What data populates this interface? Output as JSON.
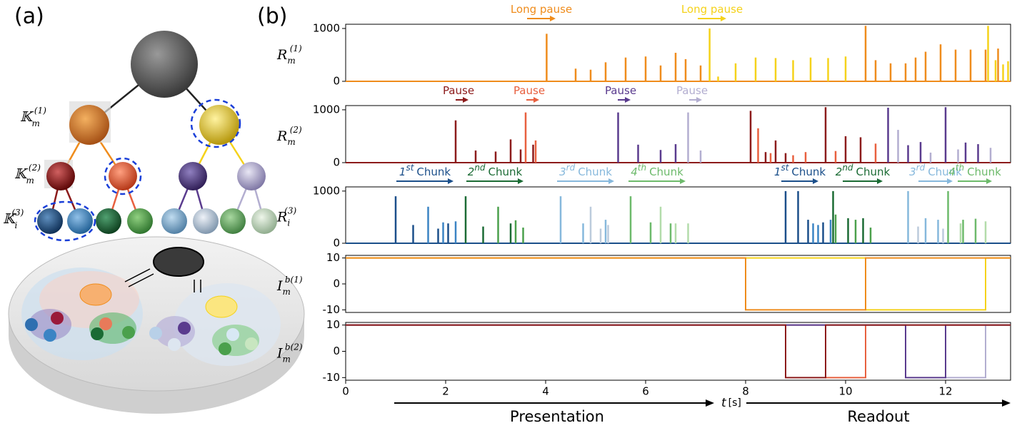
{
  "panel_labels": [
    "(a)",
    "(b)"
  ],
  "diagram": {
    "levels": [
      {
        "base": "𝕂",
        "sub": "m",
        "sup": "(1)"
      },
      {
        "base": "𝕂",
        "sub": "m",
        "sup": "(2)"
      },
      {
        "base": "𝕂",
        "sub": "i",
        "sup": "(3)"
      }
    ]
  },
  "timeline": {
    "t": "t",
    "unit": "[s]",
    "phases": [
      "Presentation",
      "Readout"
    ]
  },
  "chart_data": [
    {
      "type": "spike",
      "ylabel": {
        "base": "R",
        "sub": "m",
        "sup": "(1)"
      },
      "ylim": [
        0,
        1080
      ],
      "yticks": [
        0,
        1000
      ],
      "annotations": [
        {
          "text": "Long pause",
          "color": "#ef8c1c"
        },
        {
          "text": "Long pause",
          "color": "#f5d21a"
        }
      ],
      "series": [
        {
          "color": "#ef8c1c",
          "x": [
            4.02,
            4.6,
            4.9,
            5.2,
            5.6,
            6.0,
            6.3,
            6.6,
            6.8,
            7.1,
            10.4,
            10.6,
            10.9,
            11.2,
            11.4,
            11.6,
            11.9,
            12.2,
            12.5,
            12.8,
            13.05
          ],
          "values": [
            900,
            240,
            220,
            360,
            450,
            470,
            300,
            540,
            420,
            300,
            1050,
            400,
            340,
            340,
            450,
            560,
            700,
            600,
            600,
            600,
            620
          ]
        },
        {
          "color": "#f5d21a",
          "x": [
            7.28,
            7.45,
            7.8,
            8.2,
            8.6,
            8.95,
            9.3,
            9.65,
            10.0,
            12.85,
            13.0,
            13.15,
            13.25
          ],
          "values": [
            1000,
            90,
            340,
            450,
            440,
            400,
            450,
            440,
            470,
            1050,
            400,
            320,
            380
          ]
        }
      ]
    },
    {
      "type": "spike",
      "ylabel": {
        "base": "R",
        "sub": "m",
        "sup": "(2)"
      },
      "ylim": [
        0,
        1080
      ],
      "yticks": [
        0,
        1000
      ],
      "annotations": [
        {
          "text": "Pause",
          "color": "#8c1b1b"
        },
        {
          "text": "Pause",
          "color": "#e8603f"
        },
        {
          "text": "Pause",
          "color": "#5a3b8e"
        },
        {
          "text": "Pause",
          "color": "#b3aed0"
        }
      ],
      "series": [
        {
          "color": "#8c1b1b",
          "x": [
            2.2,
            2.6,
            3.0,
            3.3,
            3.5,
            3.75,
            8.1,
            8.4,
            8.6,
            8.8,
            9.6,
            10.0,
            10.3
          ],
          "values": [
            800,
            230,
            210,
            440,
            250,
            340,
            980,
            200,
            420,
            180,
            1050,
            500,
            480
          ]
        },
        {
          "color": "#e8603f",
          "x": [
            3.6,
            3.8,
            8.25,
            8.5,
            8.95,
            9.2,
            9.8,
            10.6
          ],
          "values": [
            950,
            420,
            650,
            180,
            140,
            200,
            220,
            360
          ]
        },
        {
          "color": "#5a3b8e",
          "x": [
            5.45,
            5.85,
            6.3,
            6.6,
            10.85,
            11.25,
            11.5,
            12.0,
            12.4,
            12.65
          ],
          "values": [
            950,
            340,
            240,
            350,
            1040,
            330,
            390,
            1050,
            380,
            350
          ]
        },
        {
          "color": "#b3aed0",
          "x": [
            6.85,
            7.1,
            11.05,
            11.7,
            12.25,
            12.9
          ],
          "values": [
            950,
            230,
            620,
            190,
            250,
            280
          ]
        }
      ]
    },
    {
      "type": "spike",
      "ylabel": {
        "base": "R",
        "sub": "i",
        "sup": "(3)"
      },
      "ylim": [
        0,
        1080
      ],
      "yticks": [
        0,
        1000
      ],
      "annotations": [
        {
          "num": "1",
          "ord": "st",
          "word": "Chunk",
          "color": "#1b4f8a"
        },
        {
          "num": "2",
          "ord": "nd",
          "word": "Chunk",
          "color": "#1b6b34"
        },
        {
          "num": "3",
          "ord": "rd",
          "word": "Chunk",
          "color": "#86b8dc"
        },
        {
          "num": "4",
          "ord": "th",
          "word": "Chunk",
          "color": "#6dba6b"
        },
        {
          "num": "1",
          "ord": "st",
          "word": "Chunk",
          "color": "#1b4f8a"
        },
        {
          "num": "2",
          "ord": "nd",
          "word": "Chunk",
          "color": "#1b6b34"
        },
        {
          "num": "3",
          "ord": "rd",
          "word": "Chunk",
          "color": "#86b8dc"
        },
        {
          "num": "4",
          "ord": "th",
          "word": "Chunk",
          "color": "#6dba6b"
        }
      ],
      "series": [
        {
          "color": "#1b4f8a",
          "x": [
            1.0,
            1.35,
            1.85,
            2.05,
            8.8,
            9.05,
            9.25,
            9.55
          ],
          "values": [
            900,
            350,
            280,
            380,
            1000,
            1000,
            450,
            400
          ]
        },
        {
          "color": "#3b84c4",
          "x": [
            1.65,
            1.95,
            2.2,
            9.35,
            9.45,
            9.7
          ],
          "values": [
            700,
            400,
            420,
            380,
            350,
            450
          ]
        },
        {
          "color": "#1b6b34",
          "x": [
            2.4,
            2.75,
            3.3,
            9.75,
            10.05,
            10.35
          ],
          "values": [
            900,
            320,
            380,
            1000,
            480,
            480
          ]
        },
        {
          "color": "#4ba04c",
          "x": [
            3.05,
            3.4,
            3.55,
            9.8,
            10.2,
            10.5
          ],
          "values": [
            700,
            440,
            300,
            550,
            450,
            300
          ]
        },
        {
          "color": "#86b8dc",
          "x": [
            4.3,
            4.75,
            5.2,
            11.25,
            11.6,
            11.85
          ],
          "values": [
            900,
            380,
            450,
            1000,
            480,
            450
          ]
        },
        {
          "color": "#bccbdc",
          "x": [
            4.9,
            5.25,
            5.1,
            11.45,
            11.95
          ],
          "values": [
            700,
            350,
            280,
            320,
            280
          ]
        },
        {
          "color": "#6dba6b",
          "x": [
            5.7,
            6.1,
            6.5,
            12.05,
            12.35,
            12.6
          ],
          "values": [
            900,
            400,
            380,
            1000,
            450,
            470
          ]
        },
        {
          "color": "#b3dcaa",
          "x": [
            6.3,
            6.6,
            6.85,
            12.3,
            12.8
          ],
          "values": [
            700,
            380,
            380,
            380,
            420
          ]
        }
      ]
    },
    {
      "type": "line",
      "ylabel": {
        "base": "I",
        "sub": "m",
        "sup": "b(1)"
      },
      "ylim": [
        -11,
        11
      ],
      "yticks": [
        -10,
        0,
        10
      ],
      "series": [
        {
          "color": "#f5d21a",
          "x": [
            0,
            10.4,
            10.4,
            12.8,
            12.8,
            13.3
          ],
          "values": [
            10,
            10,
            -10,
            -10,
            10,
            10
          ]
        },
        {
          "color": "#ef8c1c",
          "x": [
            0,
            8,
            8,
            10.4,
            10.4,
            13.3
          ],
          "values": [
            10,
            10,
            -10,
            -10,
            10,
            10
          ]
        }
      ]
    },
    {
      "type": "line",
      "ylabel": {
        "base": "I",
        "sub": "m",
        "sup": "b(2)"
      },
      "ylim": [
        -11,
        11
      ],
      "yticks": [
        -10,
        0,
        10
      ],
      "xlim": [
        0,
        13.3
      ],
      "xticks": [
        0,
        2,
        4,
        6,
        8,
        10,
        12
      ],
      "series": [
        {
          "color": "#e8603f",
          "x": [
            0,
            9.6,
            9.6,
            10.4,
            10.4,
            13.3
          ],
          "values": [
            10,
            10,
            -10,
            -10,
            10,
            10
          ]
        },
        {
          "color": "#b3aed0",
          "x": [
            0,
            12.0,
            12.0,
            12.8,
            12.8,
            13.3
          ],
          "values": [
            10,
            10,
            -10,
            -10,
            10,
            10
          ]
        },
        {
          "color": "#5a3b8e",
          "x": [
            0,
            11.2,
            11.2,
            12.0,
            12.0,
            13.3
          ],
          "values": [
            10,
            10,
            -10,
            -10,
            10,
            10
          ]
        },
        {
          "color": "#8c1b1b",
          "x": [
            0,
            8.8,
            8.8,
            9.6,
            9.6,
            13.3
          ],
          "values": [
            10,
            10,
            -10,
            -10,
            10,
            10
          ]
        }
      ]
    }
  ]
}
